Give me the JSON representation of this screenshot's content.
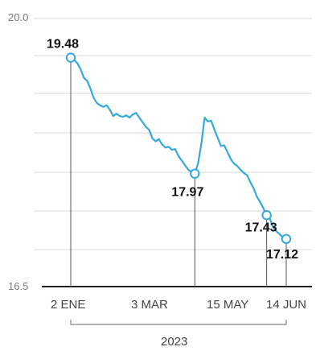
{
  "chart_data": {
    "type": "line",
    "title": "",
    "xlabel": "2023",
    "ylabel": "",
    "ylim": [
      16.5,
      20.0
    ],
    "y_ticks": [
      "20.0",
      "16.5"
    ],
    "grid": true,
    "x_ticks": [
      "2 ENE",
      "3 MAR",
      "15 MAY",
      "14 JUN"
    ],
    "highlights": [
      {
        "date": "2 ENE",
        "value": 19.48,
        "label": "19.48"
      },
      {
        "date": "3 MAR",
        "value": 17.97,
        "label": "17.97"
      },
      {
        "date": "15 MAY",
        "value": 17.43,
        "label": "17.43"
      },
      {
        "date": "14 JUN",
        "value": 17.12,
        "label": "17.12"
      }
    ],
    "series": [
      {
        "values": [
          [
            0,
            19.48
          ],
          [
            1,
            19.45
          ],
          [
            2,
            19.41
          ],
          [
            3,
            19.33
          ],
          [
            4,
            19.22
          ],
          [
            5,
            19.18
          ],
          [
            6,
            19.08
          ],
          [
            7,
            18.96
          ],
          [
            8,
            18.89
          ],
          [
            9,
            18.86
          ],
          [
            10,
            18.84
          ],
          [
            11,
            18.86
          ],
          [
            12,
            18.8
          ],
          [
            13,
            18.72
          ],
          [
            14,
            18.75
          ],
          [
            15,
            18.72
          ],
          [
            16,
            18.71
          ],
          [
            17,
            18.73
          ],
          [
            18,
            18.7
          ],
          [
            19,
            18.74
          ],
          [
            20,
            18.76
          ],
          [
            21,
            18.7
          ],
          [
            22,
            18.64
          ],
          [
            23,
            18.58
          ],
          [
            24,
            18.54
          ],
          [
            25,
            18.43
          ],
          [
            26,
            18.39
          ],
          [
            27,
            18.42
          ],
          [
            28,
            18.35
          ],
          [
            29,
            18.31
          ],
          [
            30,
            18.32
          ],
          [
            31,
            18.28
          ],
          [
            32,
            18.29
          ],
          [
            33,
            18.2
          ],
          [
            34,
            18.14
          ],
          [
            35,
            18.08
          ],
          [
            36,
            18.02
          ],
          [
            37,
            17.99
          ],
          [
            38,
            17.97
          ],
          [
            39,
            18.11
          ],
          [
            40,
            18.36
          ],
          [
            41,
            18.7
          ],
          [
            42,
            18.65
          ],
          [
            43,
            18.66
          ],
          [
            44,
            18.54
          ],
          [
            45,
            18.44
          ],
          [
            46,
            18.33
          ],
          [
            47,
            18.34
          ],
          [
            48,
            18.25
          ],
          [
            49,
            18.16
          ],
          [
            50,
            18.1
          ],
          [
            51,
            18.07
          ],
          [
            52,
            18.02
          ],
          [
            53,
            17.98
          ],
          [
            54,
            17.95
          ],
          [
            55,
            17.86
          ],
          [
            56,
            17.78
          ],
          [
            57,
            17.67
          ],
          [
            58,
            17.6
          ],
          [
            59,
            17.52
          ],
          [
            60,
            17.43
          ],
          [
            61,
            17.38
          ],
          [
            62,
            17.27
          ],
          [
            63,
            17.22
          ],
          [
            64,
            17.18
          ],
          [
            65,
            17.14
          ],
          [
            66,
            17.12
          ]
        ]
      }
    ]
  }
}
